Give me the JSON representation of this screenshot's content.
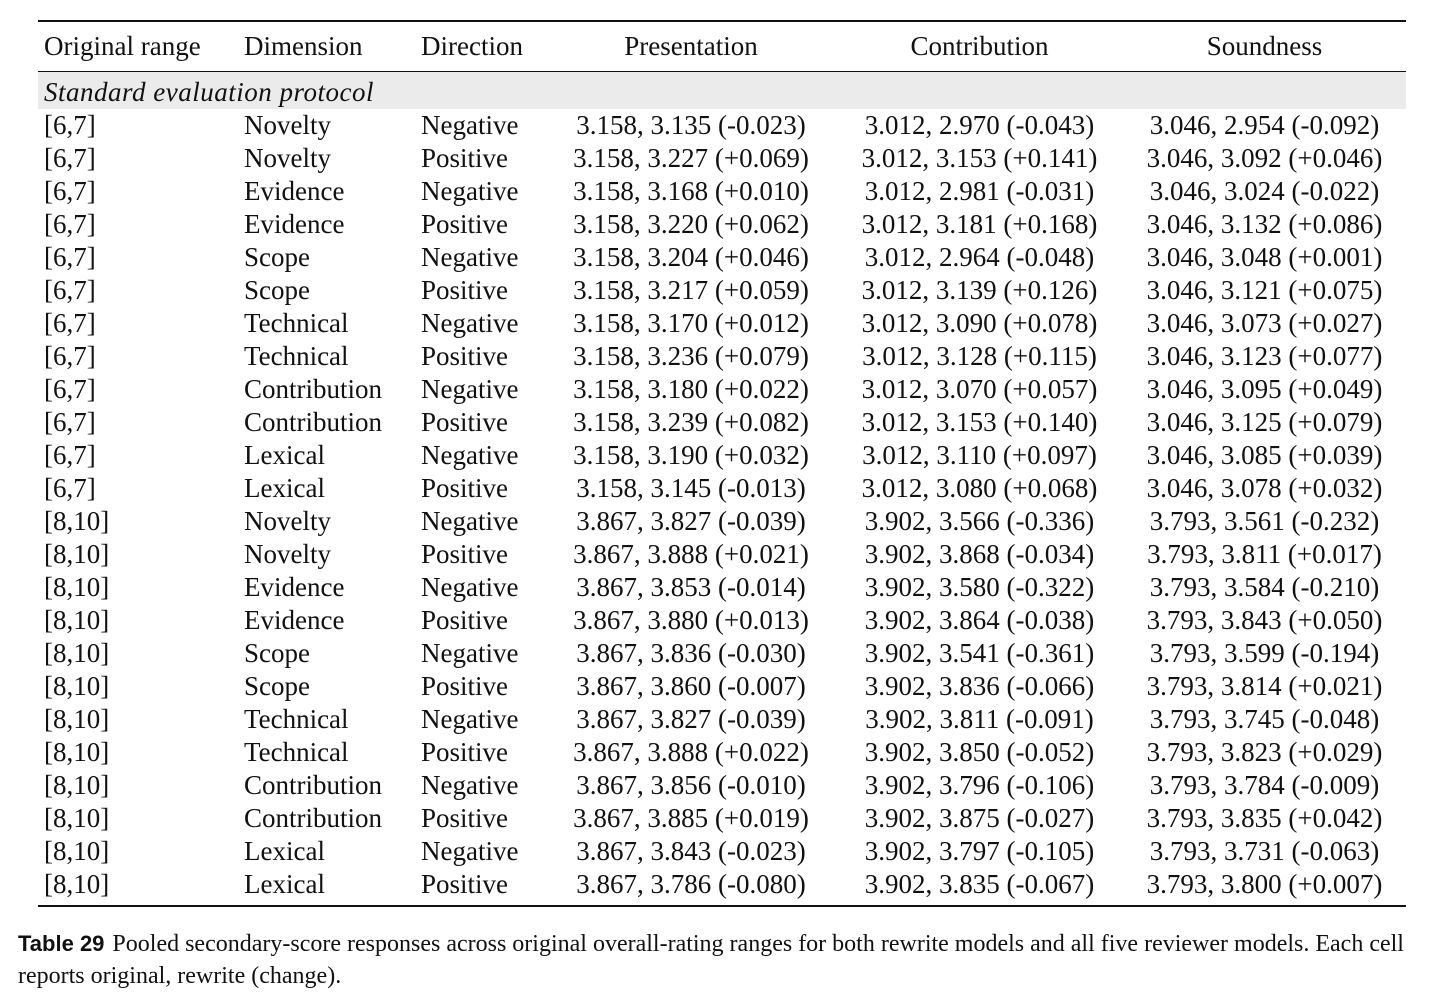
{
  "table": {
    "headers": [
      "Original range",
      "Dimension",
      "Direction",
      "Presentation",
      "Contribution",
      "Soundness"
    ],
    "section_label": "Standard evaluation protocol",
    "rows": [
      [
        "[6,7]",
        "Novelty",
        "Negative",
        "3.158, 3.135 (-0.023)",
        "3.012, 2.970 (-0.043)",
        "3.046, 2.954 (-0.092)"
      ],
      [
        "[6,7]",
        "Novelty",
        "Positive",
        "3.158, 3.227 (+0.069)",
        "3.012, 3.153 (+0.141)",
        "3.046, 3.092 (+0.046)"
      ],
      [
        "[6,7]",
        "Evidence",
        "Negative",
        "3.158, 3.168 (+0.010)",
        "3.012, 2.981 (-0.031)",
        "3.046, 3.024 (-0.022)"
      ],
      [
        "[6,7]",
        "Evidence",
        "Positive",
        "3.158, 3.220 (+0.062)",
        "3.012, 3.181 (+0.168)",
        "3.046, 3.132 (+0.086)"
      ],
      [
        "[6,7]",
        "Scope",
        "Negative",
        "3.158, 3.204 (+0.046)",
        "3.012, 2.964 (-0.048)",
        "3.046, 3.048 (+0.001)"
      ],
      [
        "[6,7]",
        "Scope",
        "Positive",
        "3.158, 3.217 (+0.059)",
        "3.012, 3.139 (+0.126)",
        "3.046, 3.121 (+0.075)"
      ],
      [
        "[6,7]",
        "Technical",
        "Negative",
        "3.158, 3.170 (+0.012)",
        "3.012, 3.090 (+0.078)",
        "3.046, 3.073 (+0.027)"
      ],
      [
        "[6,7]",
        "Technical",
        "Positive",
        "3.158, 3.236 (+0.079)",
        "3.012, 3.128 (+0.115)",
        "3.046, 3.123 (+0.077)"
      ],
      [
        "[6,7]",
        "Contribution",
        "Negative",
        "3.158, 3.180 (+0.022)",
        "3.012, 3.070 (+0.057)",
        "3.046, 3.095 (+0.049)"
      ],
      [
        "[6,7]",
        "Contribution",
        "Positive",
        "3.158, 3.239 (+0.082)",
        "3.012, 3.153 (+0.140)",
        "3.046, 3.125 (+0.079)"
      ],
      [
        "[6,7]",
        "Lexical",
        "Negative",
        "3.158, 3.190 (+0.032)",
        "3.012, 3.110 (+0.097)",
        "3.046, 3.085 (+0.039)"
      ],
      [
        "[6,7]",
        "Lexical",
        "Positive",
        "3.158, 3.145 (-0.013)",
        "3.012, 3.080 (+0.068)",
        "3.046, 3.078 (+0.032)"
      ],
      [
        "[8,10]",
        "Novelty",
        "Negative",
        "3.867, 3.827 (-0.039)",
        "3.902, 3.566 (-0.336)",
        "3.793, 3.561 (-0.232)"
      ],
      [
        "[8,10]",
        "Novelty",
        "Positive",
        "3.867, 3.888 (+0.021)",
        "3.902, 3.868 (-0.034)",
        "3.793, 3.811 (+0.017)"
      ],
      [
        "[8,10]",
        "Evidence",
        "Negative",
        "3.867, 3.853 (-0.014)",
        "3.902, 3.580 (-0.322)",
        "3.793, 3.584 (-0.210)"
      ],
      [
        "[8,10]",
        "Evidence",
        "Positive",
        "3.867, 3.880 (+0.013)",
        "3.902, 3.864 (-0.038)",
        "3.793, 3.843 (+0.050)"
      ],
      [
        "[8,10]",
        "Scope",
        "Negative",
        "3.867, 3.836 (-0.030)",
        "3.902, 3.541 (-0.361)",
        "3.793, 3.599 (-0.194)"
      ],
      [
        "[8,10]",
        "Scope",
        "Positive",
        "3.867, 3.860 (-0.007)",
        "3.902, 3.836 (-0.066)",
        "3.793, 3.814 (+0.021)"
      ],
      [
        "[8,10]",
        "Technical",
        "Negative",
        "3.867, 3.827 (-0.039)",
        "3.902, 3.811 (-0.091)",
        "3.793, 3.745 (-0.048)"
      ],
      [
        "[8,10]",
        "Technical",
        "Positive",
        "3.867, 3.888 (+0.022)",
        "3.902, 3.850 (-0.052)",
        "3.793, 3.823 (+0.029)"
      ],
      [
        "[8,10]",
        "Contribution",
        "Negative",
        "3.867, 3.856 (-0.010)",
        "3.902, 3.796 (-0.106)",
        "3.793, 3.784 (-0.009)"
      ],
      [
        "[8,10]",
        "Contribution",
        "Positive",
        "3.867, 3.885 (+0.019)",
        "3.902, 3.875 (-0.027)",
        "3.793, 3.835 (+0.042)"
      ],
      [
        "[8,10]",
        "Lexical",
        "Negative",
        "3.867, 3.843 (-0.023)",
        "3.902, 3.797 (-0.105)",
        "3.793, 3.731 (-0.063)"
      ],
      [
        "[8,10]",
        "Lexical",
        "Positive",
        "3.867, 3.786 (-0.080)",
        "3.902, 3.835 (-0.067)",
        "3.793, 3.800 (+0.007)"
      ]
    ]
  },
  "caption": {
    "label": "Table 29",
    "text": "Pooled secondary-score responses across original overall-rating ranges for both rewrite models and all five reviewer models. Each cell reports original, rewrite (change)."
  }
}
